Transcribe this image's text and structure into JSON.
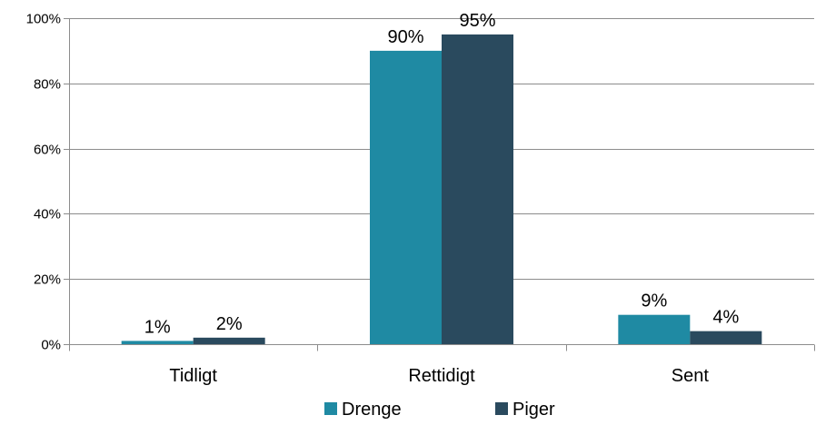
{
  "chart_data": {
    "type": "bar",
    "categories": [
      "Tidligt",
      "Rettidigt",
      "Sent"
    ],
    "series": [
      {
        "name": "Drenge",
        "values": [
          1,
          90,
          9
        ],
        "labels": [
          "1%",
          "90%",
          "9%"
        ],
        "color": "#1f8aa3"
      },
      {
        "name": "Piger",
        "values": [
          2,
          95,
          4
        ],
        "labels": [
          "2%",
          "95%",
          "4%"
        ],
        "color": "#2a4a5e"
      }
    ],
    "title": "",
    "xlabel": "",
    "ylabel": "",
    "ylim": [
      0,
      100
    ],
    "y_ticks": [
      {
        "value": 0,
        "label": "0%"
      },
      {
        "value": 20,
        "label": "20%"
      },
      {
        "value": 40,
        "label": "40%"
      },
      {
        "value": 60,
        "label": "60%"
      },
      {
        "value": 80,
        "label": "80%"
      },
      {
        "value": 100,
        "label": "100%"
      }
    ],
    "grid": true,
    "legend_position": "bottom",
    "colors": {
      "gridline": "#8c8c8c",
      "axis": "#8c8c8c"
    }
  }
}
